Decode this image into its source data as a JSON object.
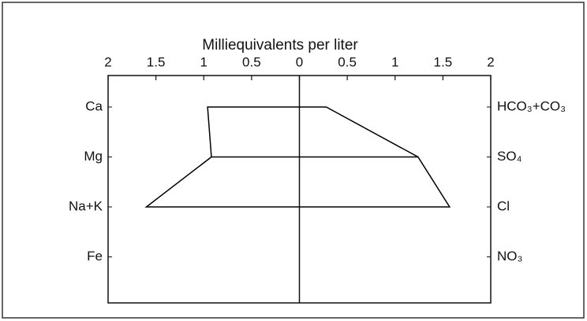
{
  "chart_data": {
    "type": "stiff",
    "title": "Milliequivalents per liter",
    "categories_left": [
      "Ca",
      "Mg",
      "Na+K",
      "Fe"
    ],
    "categories_right": [
      "HCO₃+CO₃",
      "SO₄",
      "Cl",
      "NO₃"
    ],
    "cations": [
      0.96,
      0.92,
      1.6,
      null
    ],
    "anions": [
      0.28,
      1.24,
      1.57,
      null
    ],
    "xlim": [
      -2,
      2
    ],
    "xticks": [
      {
        "value": -2,
        "label": "2"
      },
      {
        "value": -1.5,
        "label": "1.5"
      },
      {
        "value": -1,
        "label": "1"
      },
      {
        "value": -0.5,
        "label": "0.5"
      },
      0,
      0.5,
      1,
      1.5,
      2
    ],
    "color": "#000000"
  }
}
